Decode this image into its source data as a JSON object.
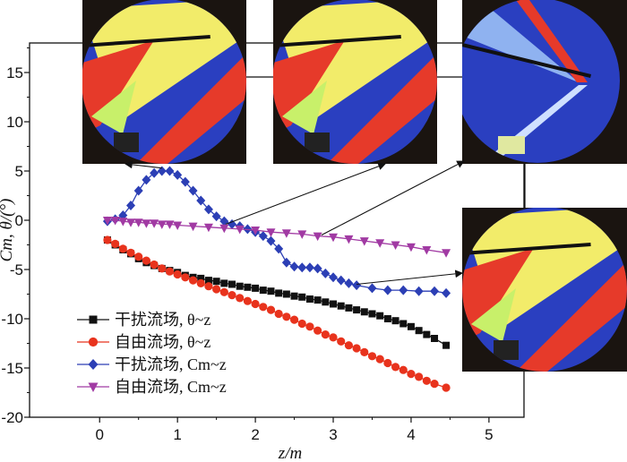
{
  "chart_data": {
    "type": "line",
    "xlabel": "z/m",
    "ylabel": "Cm, θ/(°)",
    "xlim": [
      -0.9,
      5.45
    ],
    "ylim": [
      -20,
      18
    ],
    "xticks": [
      0,
      1,
      2,
      3,
      4,
      5
    ],
    "yticks": [
      15,
      10,
      5,
      0,
      -5,
      -10,
      -15,
      -20
    ],
    "grid": false,
    "legend_position": "bottom-left",
    "series": [
      {
        "name": "干扰流场, θ~z",
        "color": "#111111",
        "marker": "square",
        "x": [
          0.1,
          0.2,
          0.3,
          0.4,
          0.5,
          0.6,
          0.7,
          0.8,
          0.9,
          1.0,
          1.1,
          1.2,
          1.3,
          1.4,
          1.5,
          1.6,
          1.7,
          1.8,
          1.9,
          2.0,
          2.1,
          2.2,
          2.3,
          2.4,
          2.5,
          2.6,
          2.7,
          2.8,
          2.9,
          3.0,
          3.1,
          3.2,
          3.3,
          3.4,
          3.5,
          3.6,
          3.7,
          3.8,
          3.9,
          4.0,
          4.1,
          4.2,
          4.3,
          4.45
        ],
        "y": [
          -2.0,
          -2.5,
          -3.0,
          -3.4,
          -3.9,
          -4.3,
          -4.6,
          -4.9,
          -5.1,
          -5.3,
          -5.6,
          -5.8,
          -5.9,
          -6.1,
          -6.2,
          -6.4,
          -6.5,
          -6.7,
          -6.8,
          -6.9,
          -7.1,
          -7.2,
          -7.4,
          -7.5,
          -7.7,
          -7.8,
          -8.0,
          -8.1,
          -8.3,
          -8.5,
          -8.7,
          -8.9,
          -9.1,
          -9.3,
          -9.5,
          -9.7,
          -10.0,
          -10.2,
          -10.5,
          -10.8,
          -11.2,
          -11.6,
          -12.0,
          -12.7
        ]
      },
      {
        "name": "自由流场, θ~z",
        "color": "#e8331d",
        "marker": "circle",
        "x": [
          0.1,
          0.2,
          0.3,
          0.4,
          0.5,
          0.6,
          0.7,
          0.8,
          0.9,
          1.0,
          1.1,
          1.2,
          1.3,
          1.4,
          1.5,
          1.6,
          1.7,
          1.8,
          1.9,
          2.0,
          2.1,
          2.2,
          2.3,
          2.4,
          2.5,
          2.6,
          2.7,
          2.8,
          2.9,
          3.0,
          3.1,
          3.2,
          3.3,
          3.4,
          3.5,
          3.6,
          3.7,
          3.8,
          3.9,
          4.0,
          4.1,
          4.2,
          4.3,
          4.45
        ],
        "y": [
          -2.0,
          -2.4,
          -2.9,
          -3.3,
          -3.7,
          -4.1,
          -4.5,
          -4.9,
          -5.2,
          -5.5,
          -5.8,
          -6.1,
          -6.4,
          -6.7,
          -7.0,
          -7.3,
          -7.6,
          -7.9,
          -8.2,
          -8.5,
          -8.8,
          -9.1,
          -9.5,
          -9.8,
          -10.1,
          -10.5,
          -10.8,
          -11.2,
          -11.6,
          -11.9,
          -12.3,
          -12.7,
          -13.0,
          -13.4,
          -13.8,
          -14.1,
          -14.5,
          -14.9,
          -15.2,
          -15.6,
          -15.9,
          -16.3,
          -16.6,
          -17.0
        ]
      },
      {
        "name": "干扰流场, Cm~z",
        "color": "#2c3fb5",
        "marker": "diamond",
        "x": [
          0.1,
          0.2,
          0.3,
          0.4,
          0.5,
          0.6,
          0.7,
          0.8,
          0.9,
          1.0,
          1.1,
          1.2,
          1.3,
          1.4,
          1.5,
          1.6,
          1.7,
          1.8,
          1.9,
          2.0,
          2.1,
          2.2,
          2.3,
          2.4,
          2.5,
          2.6,
          2.7,
          2.8,
          2.9,
          3.0,
          3.1,
          3.2,
          3.3,
          3.5,
          3.7,
          3.9,
          4.1,
          4.3,
          4.45
        ],
        "y": [
          -0.1,
          0.1,
          0.5,
          1.5,
          3.0,
          4.1,
          4.8,
          5.0,
          5.0,
          4.6,
          3.9,
          3.0,
          2.0,
          1.1,
          0.4,
          -0.1,
          -0.4,
          -0.6,
          -0.9,
          -1.2,
          -1.6,
          -2.1,
          -2.9,
          -4.3,
          -4.7,
          -4.8,
          -4.8,
          -4.9,
          -5.4,
          -5.8,
          -6.1,
          -6.4,
          -6.6,
          -6.9,
          -7.1,
          -7.1,
          -7.2,
          -7.2,
          -7.4
        ]
      },
      {
        "name": "自由流场, Cm~z",
        "color": "#a13aa3",
        "marker": "triangle-down",
        "x": [
          0.1,
          0.2,
          0.3,
          0.4,
          0.5,
          0.6,
          0.7,
          0.8,
          0.9,
          1.0,
          1.2,
          1.4,
          1.6,
          1.8,
          2.0,
          2.2,
          2.4,
          2.6,
          2.8,
          3.0,
          3.2,
          3.4,
          3.6,
          3.8,
          4.0,
          4.2,
          4.45
        ],
        "y": [
          0.0,
          0.0,
          -0.1,
          -0.2,
          -0.2,
          -0.3,
          -0.3,
          -0.4,
          -0.4,
          -0.5,
          -0.6,
          -0.7,
          -0.8,
          -0.9,
          -1.0,
          -1.2,
          -1.3,
          -1.4,
          -1.6,
          -1.7,
          -1.9,
          -2.1,
          -2.3,
          -2.5,
          -2.7,
          -3.0,
          -3.3
        ]
      }
    ]
  },
  "insets": [
    {
      "name": "schlieren-inset-1"
    },
    {
      "name": "schlieren-inset-2"
    },
    {
      "name": "schlieren-inset-3"
    },
    {
      "name": "schlieren-inset-4"
    }
  ]
}
